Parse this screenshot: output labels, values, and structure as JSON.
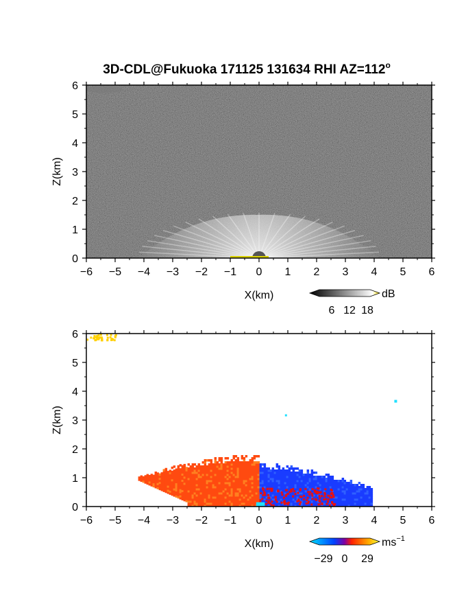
{
  "title": "3D-CDL@Fukuoka 171125 131634 RHI AZ=112",
  "title_superscript": "o",
  "chart_data": [
    {
      "name": "intensity",
      "type": "heatmap",
      "xlabel": "X(km)",
      "ylabel": "Z(km)",
      "xlim": [
        -6,
        6
      ],
      "ylim": [
        0,
        6
      ],
      "xticks": [
        "-6",
        "-5",
        "-4",
        "-3",
        "-2",
        "-1",
        "0",
        "1",
        "2",
        "3",
        "4",
        "5",
        "6"
      ],
      "yticks": [
        "0",
        "1",
        "2",
        "3",
        "4",
        "5",
        "6"
      ],
      "colorbar": {
        "unit": "dB",
        "ticks": [
          "6",
          "12",
          "18"
        ],
        "colors": [
          "#000000",
          "#ffffff",
          "#ffe000"
        ]
      },
      "features": {
        "fan_center_x": 0,
        "fan_max_radius_km": 4.2,
        "fan_top_km": 1.5,
        "background": "noise-gray"
      }
    },
    {
      "name": "velocity",
      "type": "heatmap",
      "xlabel": "X(km)",
      "ylabel": "Z(km)",
      "xlim": [
        -6,
        6
      ],
      "ylim": [
        0,
        6
      ],
      "xticks": [
        "-6",
        "-5",
        "-4",
        "-3",
        "-2",
        "-1",
        "0",
        "1",
        "2",
        "3",
        "4",
        "5",
        "6"
      ],
      "yticks": [
        "0",
        "1",
        "2",
        "3",
        "4",
        "5",
        "6"
      ],
      "colorbar": {
        "unit": "ms",
        "unit_superscript": "−1",
        "ticks": [
          "−29",
          "0",
          "29"
        ],
        "colors": [
          "#00e0ff",
          "#0040ff",
          "#ff2000",
          "#ffb000",
          "#ffff40"
        ]
      },
      "regions": [
        {
          "label": "receding",
          "color": "#ff4a10",
          "x": [
            -4.2,
            0
          ],
          "z": [
            0,
            1.8
          ]
        },
        {
          "label": "approaching",
          "color": "#1a3cff",
          "x": [
            0,
            3.9
          ],
          "z": [
            0,
            1.5
          ]
        },
        {
          "label": "near-zero",
          "color": "#20e0ff",
          "x": [
            -0.1,
            0.2
          ],
          "z": [
            0,
            0.15
          ]
        },
        {
          "label": "top-left",
          "color": "#ffd000",
          "x": [
            -6,
            -5
          ],
          "z": [
            5.8,
            6
          ]
        }
      ]
    }
  ]
}
